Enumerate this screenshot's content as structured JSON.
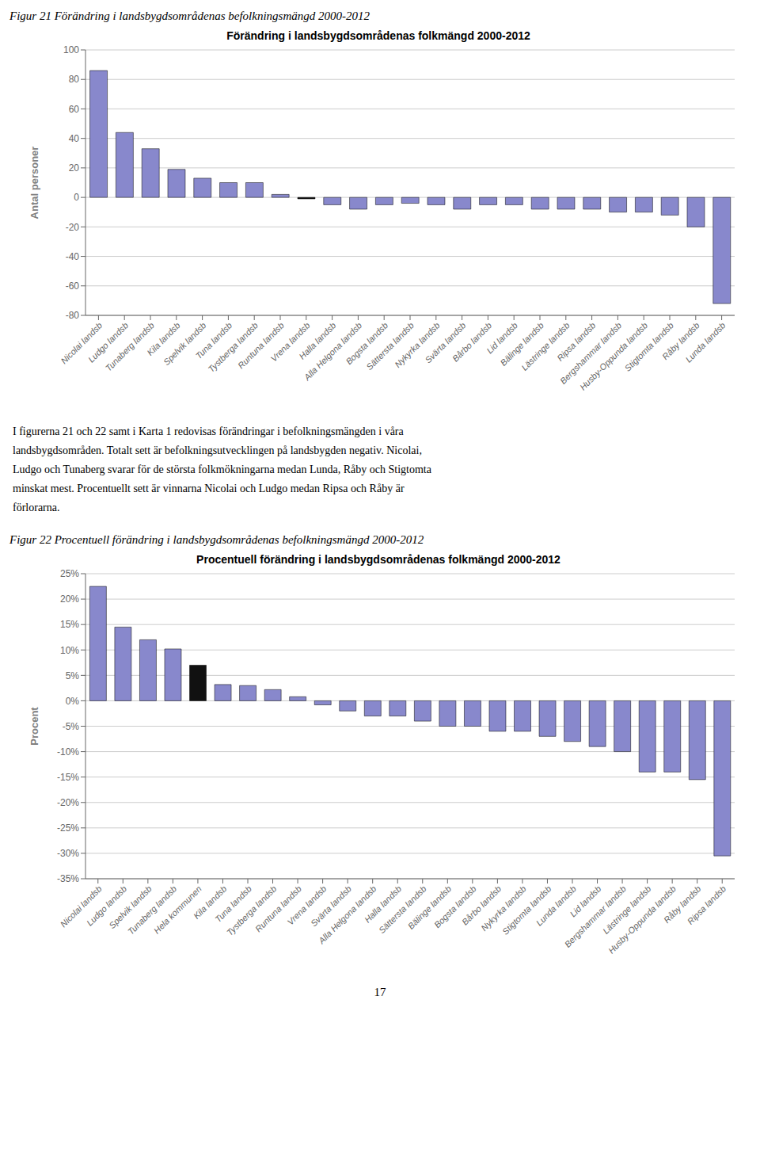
{
  "chart_data": [
    {
      "type": "bar",
      "subtitle": "Figur 21 Förändring i landsbygdsområdenas befolkningsmängd 2000-2012",
      "title": "Förändring i landsbygdsområdenas folkmängd 2000-2012",
      "ylabel": "Antal personer",
      "categories": [
        "Nicolai landsb",
        "Ludgo landsb",
        "Tunaberg landsb",
        "Kila landsb",
        "Spelvik landsb",
        "Tuna landsb",
        "Tystberga landsb",
        "Runtuna landsb",
        "Vrena landsb",
        "Halla landsb",
        "Alla Helgona landsb",
        "Bogsta landsb",
        "Sättersta landsb",
        "Nykyrka landsb",
        "Svärta landsb",
        "Bårbo landsb",
        "Lid landsb",
        "Bälinge landsb",
        "Lästringe landsb",
        "Ripsa landsb",
        "Bergshammar landsb",
        "Husby-Oppunda landsb",
        "Stigtomta landsb",
        "Råby landsb",
        "Lunda landsb"
      ],
      "values": [
        86,
        44,
        33,
        19,
        13,
        10,
        10,
        2,
        -1,
        -5,
        -8,
        -5,
        -4,
        -5,
        -8,
        -5,
        -5,
        -8,
        -8,
        -8,
        -10,
        -10,
        -12,
        -20,
        -72
      ],
      "colors": [
        "#8888cc",
        "#8888cc",
        "#8888cc",
        "#8888cc",
        "#8888cc",
        "#8888cc",
        "#8888cc",
        "#8888cc",
        "#111111",
        "#8888cc",
        "#8888cc",
        "#8888cc",
        "#8888cc",
        "#8888cc",
        "#8888cc",
        "#8888cc",
        "#8888cc",
        "#8888cc",
        "#8888cc",
        "#8888cc",
        "#8888cc",
        "#8888cc",
        "#8888cc",
        "#8888cc",
        "#8888cc"
      ],
      "ylim": [
        -80,
        100
      ],
      "yticks": [
        -80,
        -60,
        -40,
        -20,
        0,
        20,
        40,
        60,
        80,
        100
      ],
      "grid": true
    },
    {
      "type": "bar",
      "subtitle": "Figur 22 Procentuell förändring i landsbygdsområdenas befolkningsmängd 2000-2012",
      "title": "Procentuell förändring i landsbygdsområdenas folkmängd 2000-2012",
      "ylabel": "Procent",
      "categories": [
        "Nicolai landsb",
        "Ludgo landsb",
        "Spelvik landsb",
        "Tunaberg landsb",
        "Hela kommunen",
        "Kila landsb",
        "Tuna landsb",
        "Tystberga landsb",
        "Runtuna landsb",
        "Vrena landsb",
        "Svärta landsb",
        "Alla Helgona landsb",
        "Halla landsb",
        "Sättersta landsb",
        "Bälinge landsb",
        "Bogsta landsb",
        "Bårbo landsb",
        "Nykyrka landsb",
        "Stigtomta landsb",
        "Lunda landsb",
        "Lid landsb",
        "Bergshammar landsb",
        "Lästringe landsb",
        "Husby-Oppunda landsb",
        "Råby landsb",
        "Ripsa landsb"
      ],
      "values": [
        0.225,
        0.145,
        0.12,
        0.102,
        0.07,
        0.032,
        0.03,
        0.022,
        0.008,
        -0.008,
        -0.02,
        -0.03,
        -0.03,
        -0.04,
        -0.05,
        -0.05,
        -0.06,
        -0.06,
        -0.07,
        -0.08,
        -0.09,
        -0.1,
        -0.14,
        -0.14,
        -0.155,
        -0.305
      ],
      "colors": [
        "#8888cc",
        "#8888cc",
        "#8888cc",
        "#8888cc",
        "#111111",
        "#8888cc",
        "#8888cc",
        "#8888cc",
        "#8888cc",
        "#8888cc",
        "#8888cc",
        "#8888cc",
        "#8888cc",
        "#8888cc",
        "#8888cc",
        "#8888cc",
        "#8888cc",
        "#8888cc",
        "#8888cc",
        "#8888cc",
        "#8888cc",
        "#8888cc",
        "#8888cc",
        "#8888cc",
        "#8888cc",
        "#8888cc"
      ],
      "ylim": [
        -0.35,
        0.25
      ],
      "yticks": [
        {
          "value": -0.35,
          "label": "-35%"
        },
        {
          "value": -0.3,
          "label": "-30%"
        },
        {
          "value": -0.25,
          "label": "-25%"
        },
        {
          "value": -0.2,
          "label": "-20%"
        },
        {
          "value": -0.15,
          "label": "-15%"
        },
        {
          "value": -0.1,
          "label": "-10%"
        },
        {
          "value": -0.05,
          "label": "-5%"
        },
        {
          "value": 0.0,
          "label": "0%"
        },
        {
          "value": 0.05,
          "label": "5%"
        },
        {
          "value": 0.1,
          "label": "10%"
        },
        {
          "value": 0.15,
          "label": "15%"
        },
        {
          "value": 0.2,
          "label": "20%"
        },
        {
          "value": 0.25,
          "label": "25%"
        }
      ],
      "grid": true
    }
  ],
  "annotations": [
    "I figurerna 21 och 22 samt i Karta 1 redovisas förändringar i befolkningsmängden i våra",
    "landsbygdsområden. Totalt sett är befolkningsutvecklingen på landsbygden negativ. Nicolai,",
    "Ludgo och Tunaberg svarar för de största folkmökningarna medan Lunda, Råby och Stigtomta",
    "minskat mest. Procentuellt sett är vinnarna Nicolai och Ludgo medan Ripsa och Råby är",
    "förlorarna."
  ],
  "page_number": "17"
}
